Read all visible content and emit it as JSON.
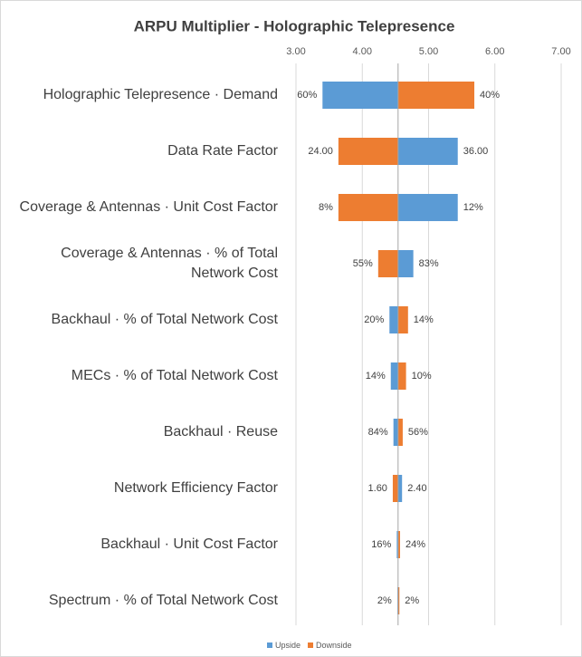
{
  "chart_data": {
    "type": "tornado",
    "title": "ARPU Multiplier - Holographic Telepresence",
    "categories": [
      "Holographic Telepresence  · Demand",
      "Data Rate Factor",
      "Coverage & Antennas · Unit Cost Factor",
      "Coverage & Antennas ·  % of Total Network Cost",
      "Backhaul ·  % of Total Network Cost",
      "MECs ·  % of Total Network Cost",
      "Backhaul ·  Reuse",
      "Network Efficiency Factor",
      "Backhaul · Unit Cost Factor",
      "Spectrum ·  % of Total Network Cost"
    ],
    "base": 4.54,
    "series": [
      {
        "name": "Upside",
        "color": "#5b9bd5",
        "values": [
          3.4,
          5.44,
          5.44,
          4.77,
          4.41,
          4.43,
          4.47,
          4.6,
          4.52,
          4.53
        ],
        "labels": [
          "60%",
          "36.00",
          "12%",
          "83%",
          "20%",
          "14%",
          "84%",
          "2.40",
          "16%",
          "2%"
        ]
      },
      {
        "name": "Downside",
        "color": "#ed7d31",
        "values": [
          5.69,
          3.64,
          3.64,
          4.24,
          4.69,
          4.66,
          4.61,
          4.46,
          4.57,
          4.56
        ],
        "labels": [
          "40%",
          "24.00",
          "8%",
          "55%",
          "14%",
          "10%",
          "56%",
          "1.60",
          "24%",
          "2%"
        ]
      }
    ],
    "xlim": [
      3,
      7
    ],
    "xticks": [
      {
        "value": 3,
        "label": "3.00"
      },
      {
        "value": 4,
        "label": "4.00"
      },
      {
        "value": 5,
        "label": "5.00"
      },
      {
        "value": 6,
        "label": "6.00"
      },
      {
        "value": 7,
        "label": "7.00"
      }
    ],
    "grid": true
  }
}
